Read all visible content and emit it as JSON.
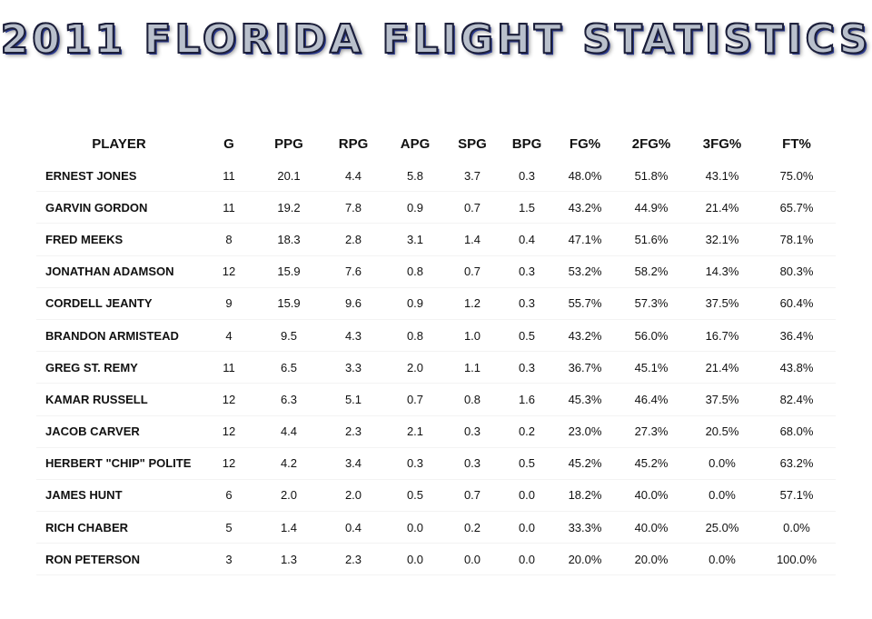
{
  "title": "2011 FLORIDA FLIGHT STATISTICS",
  "columns": [
    "PLAYER",
    "G",
    "PPG",
    "RPG",
    "APG",
    "SPG",
    "BPG",
    "FG%",
    "2FG%",
    "3FG%",
    "FT%"
  ],
  "rows": [
    [
      "ERNEST JONES",
      "11",
      "20.1",
      "4.4",
      "5.8",
      "3.7",
      "0.3",
      "48.0%",
      "51.8%",
      "43.1%",
      "75.0%"
    ],
    [
      "GARVIN GORDON",
      "11",
      "19.2",
      "7.8",
      "0.9",
      "0.7",
      "1.5",
      "43.2%",
      "44.9%",
      "21.4%",
      "65.7%"
    ],
    [
      "FRED MEEKS",
      "8",
      "18.3",
      "2.8",
      "3.1",
      "1.4",
      "0.4",
      "47.1%",
      "51.6%",
      "32.1%",
      "78.1%"
    ],
    [
      "JONATHAN ADAMSON",
      "12",
      "15.9",
      "7.6",
      "0.8",
      "0.7",
      "0.3",
      "53.2%",
      "58.2%",
      "14.3%",
      "80.3%"
    ],
    [
      "CORDELL JEANTY",
      "9",
      "15.9",
      "9.6",
      "0.9",
      "1.2",
      "0.3",
      "55.7%",
      "57.3%",
      "37.5%",
      "60.4%"
    ],
    [
      "BRANDON ARMISTEAD",
      "4",
      "9.5",
      "4.3",
      "0.8",
      "1.0",
      "0.5",
      "43.2%",
      "56.0%",
      "16.7%",
      "36.4%"
    ],
    [
      "GREG ST. REMY",
      "11",
      "6.5",
      "3.3",
      "2.0",
      "1.1",
      "0.3",
      "36.7%",
      "45.1%",
      "21.4%",
      "43.8%"
    ],
    [
      "KAMAR RUSSELL",
      "12",
      "6.3",
      "5.1",
      "0.7",
      "0.8",
      "1.6",
      "45.3%",
      "46.4%",
      "37.5%",
      "82.4%"
    ],
    [
      "JACOB CARVER",
      "12",
      "4.4",
      "2.3",
      "2.1",
      "0.3",
      "0.2",
      "23.0%",
      "27.3%",
      "20.5%",
      "68.0%"
    ],
    [
      "HERBERT \"CHIP\" POLITE",
      "12",
      "4.2",
      "3.4",
      "0.3",
      "0.3",
      "0.5",
      "45.2%",
      "45.2%",
      "0.0%",
      "63.2%"
    ],
    [
      "JAMES HUNT",
      "6",
      "2.0",
      "2.0",
      "0.5",
      "0.7",
      "0.0",
      "18.2%",
      "40.0%",
      "0.0%",
      "57.1%"
    ],
    [
      "RICH CHABER",
      "5",
      "1.4",
      "0.4",
      "0.0",
      "0.2",
      "0.0",
      "33.3%",
      "40.0%",
      "25.0%",
      "0.0%"
    ],
    [
      "RON PETERSON",
      "3",
      "1.3",
      "2.3",
      "0.0",
      "0.0",
      "0.0",
      "20.0%",
      "20.0%",
      "0.0%",
      "100.0%"
    ]
  ]
}
